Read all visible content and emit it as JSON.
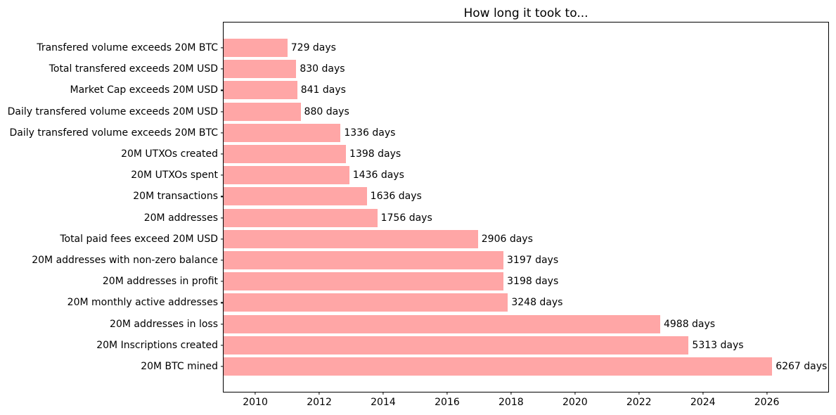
{
  "chart_data": {
    "type": "bar",
    "orientation": "horizontal",
    "title": "How long it took to...",
    "bar_color": "#ffa6a6",
    "text_color": "#000000",
    "grid": false,
    "legend": null,
    "categories": [
      "Transfered volume exceeds 20M BTC",
      "Total transfered exceeds 20M USD",
      "Market Cap exceeds 20M USD",
      "Daily transfered volume exceeds 20M USD",
      "Daily transfered volume exceeds 20M BTC",
      "20M UTXOs created",
      "20M UTXOs spent",
      "20M transactions",
      "20M addresses",
      "Total paid fees exceed 20M USD",
      "20M addresses with non-zero balance",
      "20M addresses in profit",
      "20M monthly active addresses",
      "20M addresses in loss",
      "20M Inscriptions created",
      "20M BTC mined"
    ],
    "values": [
      729,
      830,
      841,
      880,
      1336,
      1398,
      1436,
      1636,
      1756,
      2906,
      3197,
      3198,
      3248,
      4988,
      5313,
      6267
    ],
    "value_labels": [
      "729 days",
      "830 days",
      "841 days",
      "880 days",
      "1336 days",
      "1398 days",
      "1436 days",
      "1636 days",
      "1756 days",
      "2906 days",
      "3197 days",
      "3198 days",
      "3248 days",
      "4988 days",
      "5313 days",
      "6267 days"
    ],
    "xlabel": "",
    "ylabel": "",
    "xlim_days": [
      0,
      6908
    ],
    "x_ticks": [
      {
        "label": "2010",
        "day": 362
      },
      {
        "label": "2012",
        "day": 1093
      },
      {
        "label": "2014",
        "day": 1823
      },
      {
        "label": "2016",
        "day": 2554
      },
      {
        "label": "2018",
        "day": 3284
      },
      {
        "label": "2020",
        "day": 4015
      },
      {
        "label": "2022",
        "day": 4745
      },
      {
        "label": "2024",
        "day": 5476
      },
      {
        "label": "2026",
        "day": 6206
      }
    ]
  }
}
